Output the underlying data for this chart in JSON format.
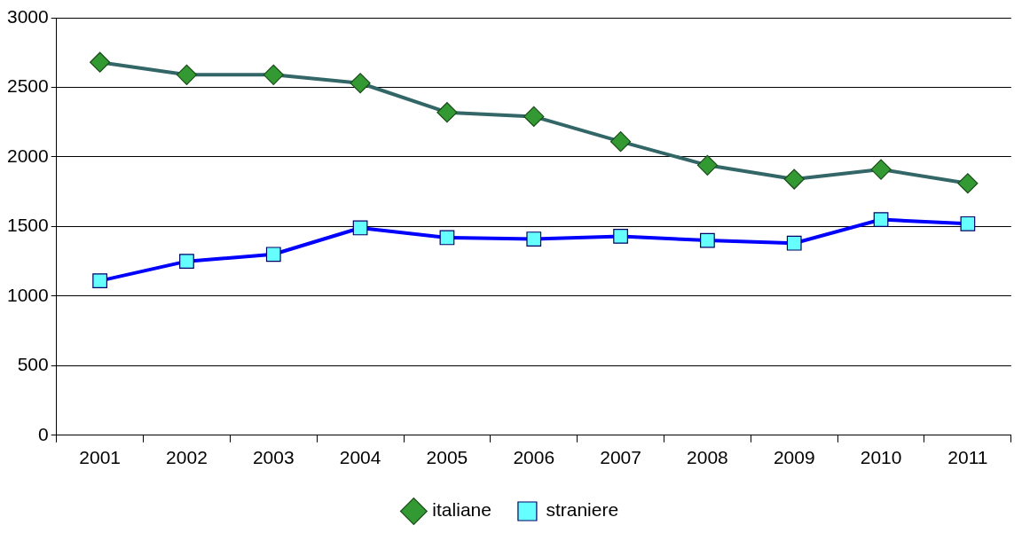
{
  "chart_data": {
    "type": "line",
    "categories": [
      "2001",
      "2002",
      "2003",
      "2004",
      "2005",
      "2006",
      "2007",
      "2008",
      "2009",
      "2010",
      "2011"
    ],
    "series": [
      {
        "name": "italiane",
        "color": "#336666",
        "marker": "diamond",
        "values": [
          2680,
          2590,
          2590,
          2530,
          2320,
          2290,
          2110,
          1940,
          1840,
          1910,
          1810
        ]
      },
      {
        "name": "straniere",
        "color": "#0000ff",
        "marker": "square",
        "values": [
          1110,
          1250,
          1300,
          1490,
          1420,
          1410,
          1430,
          1400,
          1380,
          1550,
          1520
        ]
      }
    ],
    "ylim": [
      0,
      3000
    ],
    "yticks": [
      0,
      500,
      1000,
      1500,
      2000,
      2500,
      3000
    ],
    "grid": "y",
    "legend": "bottom",
    "line_style": "solid"
  }
}
